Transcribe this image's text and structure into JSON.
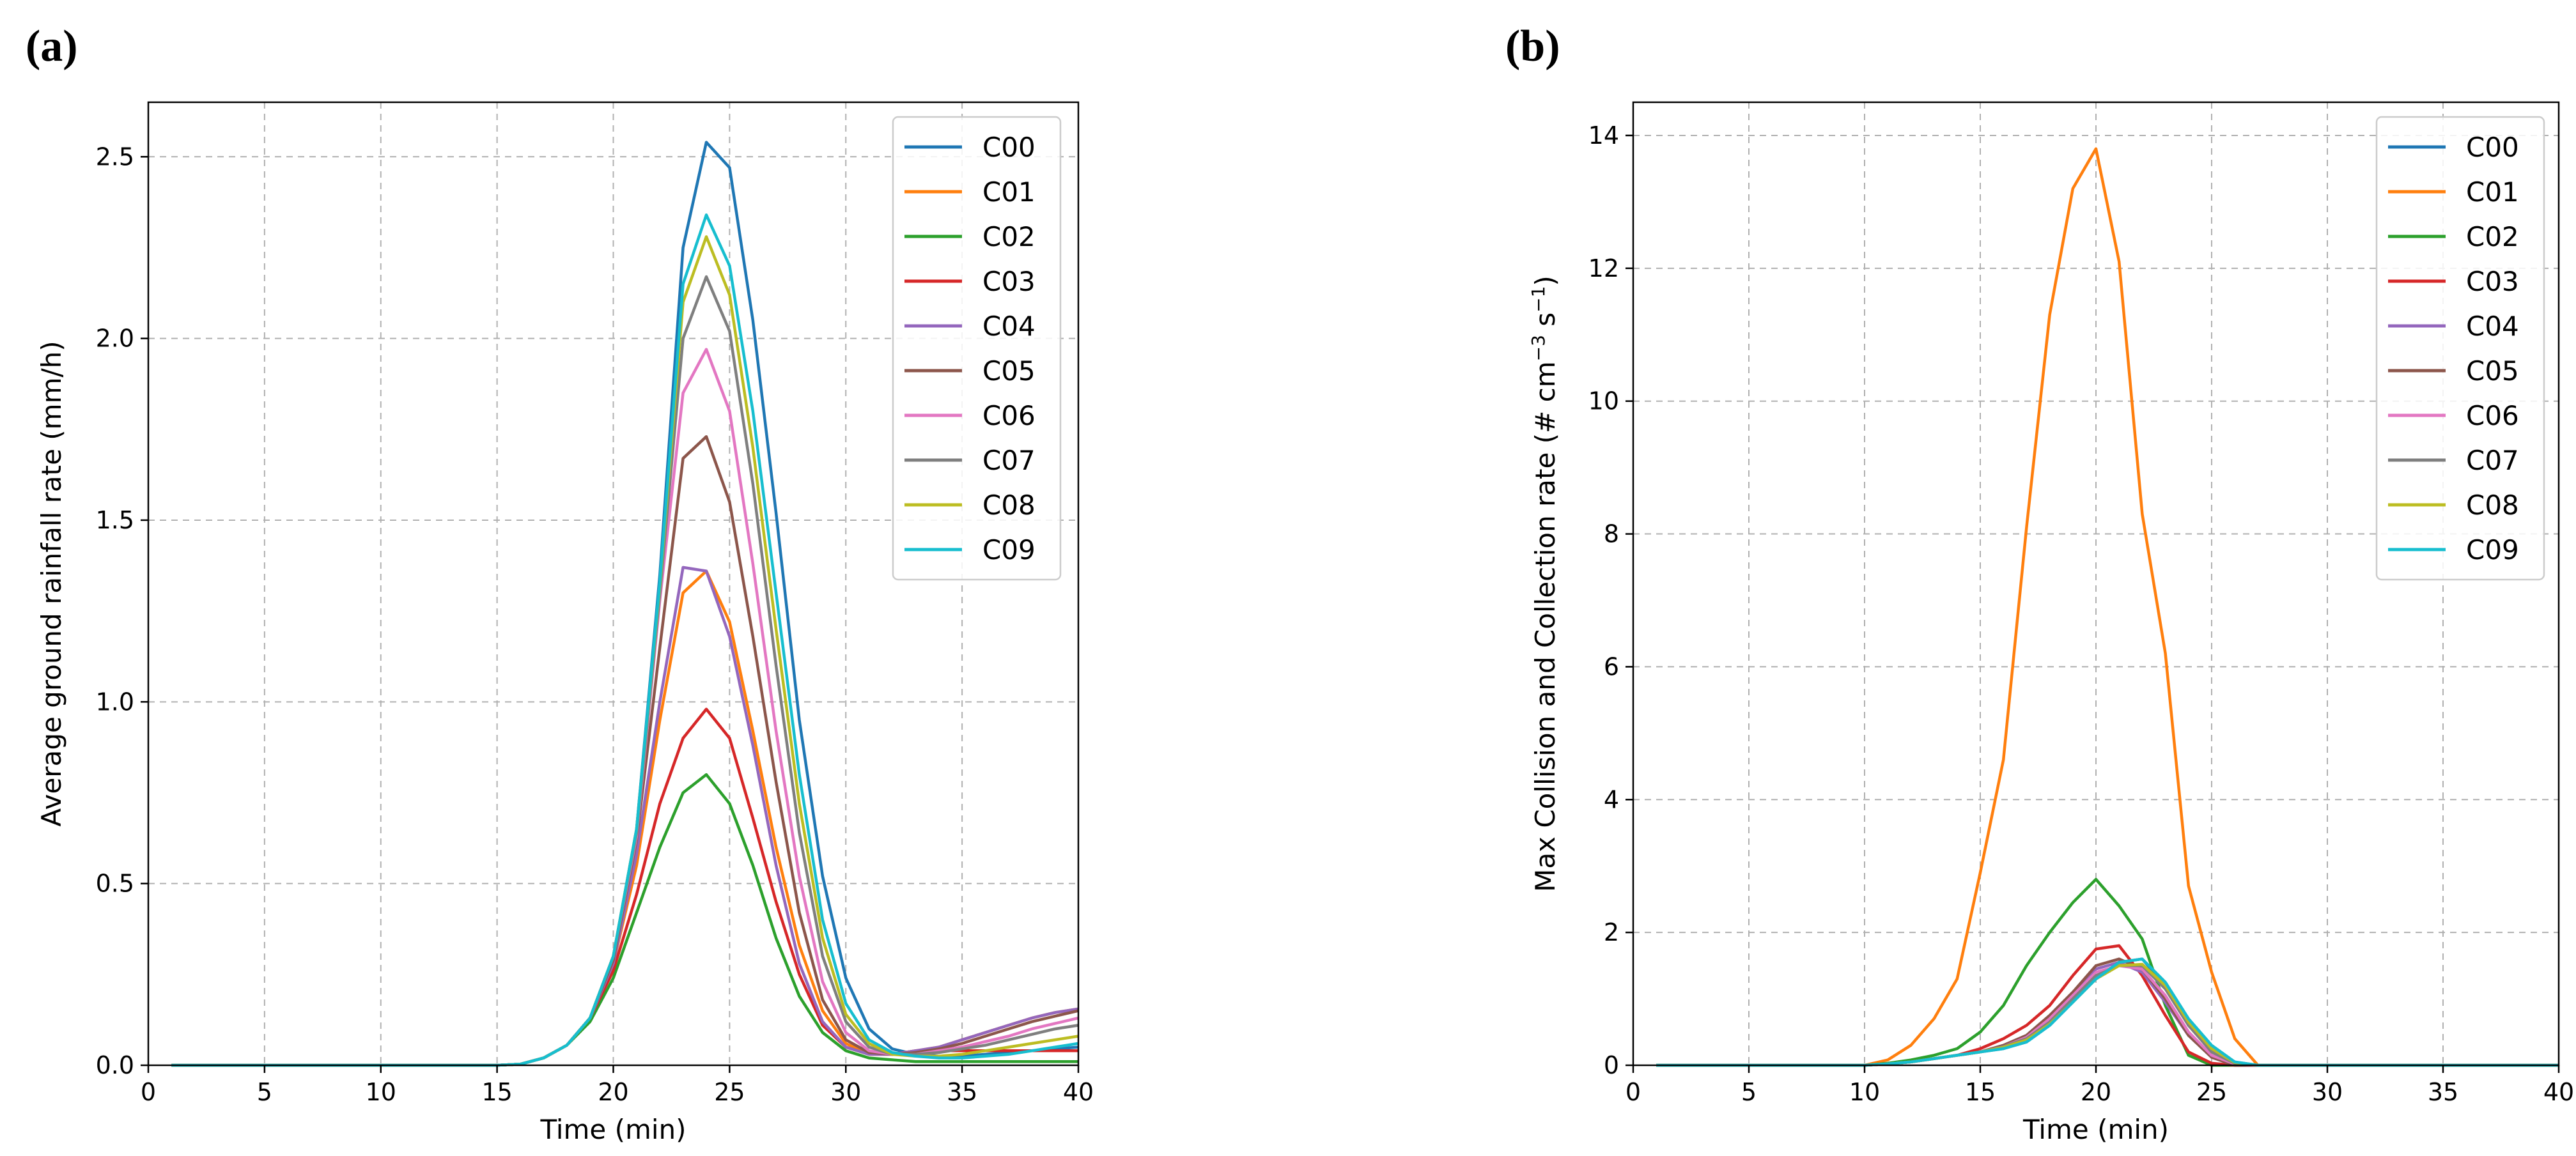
{
  "chart_data": [
    {
      "panel_label": "(a)",
      "type": "line",
      "title": "",
      "xlabel": "Time (min)",
      "ylabel": "Average ground rainfall rate (mm/h)",
      "xlim": [
        0,
        40
      ],
      "ylim": [
        0,
        2.65
      ],
      "xticks": [
        0,
        5,
        10,
        15,
        20,
        25,
        30,
        35,
        40
      ],
      "yticks": [
        0.0,
        0.5,
        1.0,
        1.5,
        2.0,
        2.5
      ],
      "ytick_labels": [
        "0.0",
        "0.5",
        "1.0",
        "1.5",
        "2.0",
        "2.5"
      ],
      "grid": true,
      "legend_position": "top-right",
      "x": [
        1,
        2,
        3,
        4,
        5,
        6,
        7,
        8,
        9,
        10,
        11,
        12,
        13,
        14,
        15,
        16,
        17,
        18,
        19,
        20,
        21,
        22,
        23,
        24,
        25,
        26,
        27,
        28,
        29,
        30,
        31,
        32,
        33,
        34,
        35,
        36,
        37,
        38,
        39,
        40
      ],
      "series": [
        {
          "name": "C00",
          "color": "#1f77b4",
          "values": [
            0,
            0,
            0,
            0,
            0,
            0,
            0,
            0,
            0,
            0,
            0,
            0,
            0,
            0,
            0,
            0.003,
            0.02,
            0.055,
            0.13,
            0.3,
            0.65,
            1.35,
            2.25,
            2.54,
            2.47,
            2.05,
            1.52,
            0.95,
            0.52,
            0.24,
            0.1,
            0.045,
            0.03,
            0.025,
            0.025,
            0.03,
            0.035,
            0.04,
            0.045,
            0.05
          ]
        },
        {
          "name": "C01",
          "color": "#ff7f0e",
          "values": [
            0,
            0,
            0,
            0,
            0,
            0,
            0,
            0,
            0,
            0,
            0,
            0,
            0,
            0,
            0,
            0.003,
            0.02,
            0.055,
            0.13,
            0.28,
            0.55,
            0.95,
            1.3,
            1.36,
            1.22,
            0.92,
            0.6,
            0.33,
            0.15,
            0.06,
            0.03,
            0.03,
            0.04,
            0.05,
            0.07,
            0.09,
            0.11,
            0.13,
            0.145,
            0.155
          ]
        },
        {
          "name": "C02",
          "color": "#2ca02c",
          "values": [
            0,
            0,
            0,
            0,
            0,
            0,
            0,
            0,
            0,
            0,
            0,
            0,
            0,
            0,
            0,
            0.003,
            0.02,
            0.055,
            0.12,
            0.24,
            0.42,
            0.6,
            0.75,
            0.8,
            0.72,
            0.55,
            0.35,
            0.19,
            0.09,
            0.04,
            0.02,
            0.015,
            0.01,
            0.01,
            0.01,
            0.01,
            0.01,
            0.01,
            0.01,
            0.01
          ]
        },
        {
          "name": "C03",
          "color": "#d62728",
          "values": [
            0,
            0,
            0,
            0,
            0,
            0,
            0,
            0,
            0,
            0,
            0,
            0,
            0,
            0,
            0,
            0.003,
            0.02,
            0.055,
            0.13,
            0.26,
            0.47,
            0.72,
            0.9,
            0.98,
            0.9,
            0.68,
            0.45,
            0.25,
            0.11,
            0.05,
            0.03,
            0.03,
            0.04,
            0.04,
            0.04,
            0.04,
            0.04,
            0.04,
            0.04,
            0.04
          ]
        },
        {
          "name": "C04",
          "color": "#9467bd",
          "values": [
            0,
            0,
            0,
            0,
            0,
            0,
            0,
            0,
            0,
            0,
            0,
            0,
            0,
            0,
            0,
            0.003,
            0.02,
            0.055,
            0.13,
            0.28,
            0.58,
            1.0,
            1.37,
            1.36,
            1.18,
            0.88,
            0.55,
            0.28,
            0.12,
            0.05,
            0.03,
            0.03,
            0.04,
            0.05,
            0.07,
            0.09,
            0.11,
            0.13,
            0.145,
            0.155
          ]
        },
        {
          "name": "C05",
          "color": "#8c564b",
          "values": [
            0,
            0,
            0,
            0,
            0,
            0,
            0,
            0,
            0,
            0,
            0,
            0,
            0,
            0,
            0,
            0.003,
            0.02,
            0.055,
            0.13,
            0.29,
            0.62,
            1.15,
            1.67,
            1.73,
            1.55,
            1.18,
            0.78,
            0.42,
            0.18,
            0.07,
            0.035,
            0.03,
            0.035,
            0.045,
            0.06,
            0.08,
            0.1,
            0.12,
            0.135,
            0.15
          ]
        },
        {
          "name": "C06",
          "color": "#e377c2",
          "values": [
            0,
            0,
            0,
            0,
            0,
            0,
            0,
            0,
            0,
            0,
            0,
            0,
            0,
            0,
            0,
            0.003,
            0.02,
            0.055,
            0.13,
            0.3,
            0.63,
            1.28,
            1.85,
            1.97,
            1.8,
            1.38,
            0.92,
            0.52,
            0.23,
            0.09,
            0.04,
            0.03,
            0.03,
            0.04,
            0.05,
            0.065,
            0.08,
            0.1,
            0.115,
            0.13
          ]
        },
        {
          "name": "C07",
          "color": "#7f7f7f",
          "values": [
            0,
            0,
            0,
            0,
            0,
            0,
            0,
            0,
            0,
            0,
            0,
            0,
            0,
            0,
            0,
            0.003,
            0.02,
            0.055,
            0.13,
            0.3,
            0.64,
            1.3,
            2.0,
            2.17,
            2.02,
            1.6,
            1.1,
            0.64,
            0.3,
            0.12,
            0.05,
            0.03,
            0.03,
            0.035,
            0.045,
            0.055,
            0.07,
            0.085,
            0.1,
            0.11
          ]
        },
        {
          "name": "C08",
          "color": "#bcbd22",
          "values": [
            0,
            0,
            0,
            0,
            0,
            0,
            0,
            0,
            0,
            0,
            0,
            0,
            0,
            0,
            0,
            0.003,
            0.02,
            0.055,
            0.13,
            0.3,
            0.65,
            1.32,
            2.1,
            2.28,
            2.12,
            1.7,
            1.2,
            0.72,
            0.35,
            0.14,
            0.06,
            0.03,
            0.025,
            0.025,
            0.03,
            0.04,
            0.05,
            0.06,
            0.07,
            0.08
          ]
        },
        {
          "name": "C09",
          "color": "#17becf",
          "values": [
            0,
            0,
            0,
            0,
            0,
            0,
            0,
            0,
            0,
            0,
            0,
            0,
            0,
            0,
            0,
            0.003,
            0.02,
            0.055,
            0.13,
            0.3,
            0.65,
            1.33,
            2.15,
            2.34,
            2.2,
            1.8,
            1.3,
            0.8,
            0.4,
            0.17,
            0.07,
            0.035,
            0.025,
            0.02,
            0.02,
            0.025,
            0.03,
            0.04,
            0.05,
            0.06
          ]
        }
      ]
    },
    {
      "panel_label": "(b)",
      "type": "line",
      "title": "",
      "xlabel": "Time (min)",
      "ylabel": "Max Collision and Collection rate (# cm",
      "ylabel_sup1": "−3",
      "ylabel_mid": " s",
      "ylabel_sup2": "−1",
      "ylabel_end": ")",
      "xlim": [
        0,
        40
      ],
      "ylim": [
        0,
        14.5
      ],
      "xticks": [
        0,
        5,
        10,
        15,
        20,
        25,
        30,
        35,
        40
      ],
      "yticks": [
        0,
        2,
        4,
        6,
        8,
        10,
        12,
        14
      ],
      "ytick_labels": [
        "0",
        "2",
        "4",
        "6",
        "8",
        "10",
        "12",
        "14"
      ],
      "grid": true,
      "legend_position": "top-right",
      "x": [
        1,
        2,
        3,
        4,
        5,
        6,
        7,
        8,
        9,
        10,
        11,
        12,
        13,
        14,
        15,
        16,
        17,
        18,
        19,
        20,
        21,
        22,
        23,
        24,
        25,
        26,
        27,
        28,
        29,
        30,
        31,
        32,
        33,
        34,
        35,
        36,
        37,
        38,
        39,
        40
      ],
      "series": [
        {
          "name": "C00",
          "color": "#1f77b4",
          "values": [
            0,
            0,
            0,
            0,
            0,
            0,
            0,
            0,
            0,
            0,
            0.02,
            0.05,
            0.1,
            0.15,
            0.2,
            0.25,
            0.35,
            0.6,
            0.95,
            1.3,
            1.55,
            1.6,
            1.2,
            0.6,
            0.25,
            0.05,
            0,
            0,
            0,
            0,
            0,
            0,
            0,
            0,
            0,
            0,
            0,
            0,
            0,
            0
          ]
        },
        {
          "name": "C01",
          "color": "#ff7f0e",
          "values": [
            0,
            0,
            0,
            0,
            0,
            0,
            0,
            0,
            0,
            0,
            0.08,
            0.3,
            0.7,
            1.3,
            2.9,
            4.6,
            8.1,
            11.3,
            13.2,
            13.8,
            12.1,
            8.3,
            6.2,
            2.7,
            1.4,
            0.4,
            0,
            0,
            0,
            0,
            0,
            0,
            0,
            0,
            0,
            0,
            0,
            0,
            0,
            0
          ]
        },
        {
          "name": "C02",
          "color": "#2ca02c",
          "values": [
            0,
            0,
            0,
            0,
            0,
            0,
            0,
            0,
            0,
            0,
            0.03,
            0.08,
            0.15,
            0.25,
            0.5,
            0.9,
            1.5,
            2.0,
            2.45,
            2.8,
            2.4,
            1.9,
            0.9,
            0.15,
            0,
            0,
            0,
            0,
            0,
            0,
            0,
            0,
            0,
            0,
            0,
            0,
            0,
            0,
            0,
            0
          ]
        },
        {
          "name": "C03",
          "color": "#d62728",
          "values": [
            0,
            0,
            0,
            0,
            0,
            0,
            0,
            0,
            0,
            0,
            0.02,
            0.05,
            0.1,
            0.15,
            0.25,
            0.4,
            0.6,
            0.9,
            1.35,
            1.75,
            1.8,
            1.35,
            0.75,
            0.2,
            0.03,
            0,
            0,
            0,
            0,
            0,
            0,
            0,
            0,
            0,
            0,
            0,
            0,
            0,
            0,
            0
          ]
        },
        {
          "name": "C04",
          "color": "#9467bd",
          "values": [
            0,
            0,
            0,
            0,
            0,
            0,
            0,
            0,
            0,
            0,
            0.02,
            0.05,
            0.1,
            0.15,
            0.2,
            0.3,
            0.45,
            0.75,
            1.1,
            1.45,
            1.55,
            1.4,
            0.95,
            0.45,
            0.12,
            0,
            0,
            0,
            0,
            0,
            0,
            0,
            0,
            0,
            0,
            0,
            0,
            0,
            0,
            0
          ]
        },
        {
          "name": "C05",
          "color": "#8c564b",
          "values": [
            0,
            0,
            0,
            0,
            0,
            0,
            0,
            0,
            0,
            0,
            0.02,
            0.05,
            0.1,
            0.15,
            0.2,
            0.3,
            0.45,
            0.75,
            1.1,
            1.5,
            1.6,
            1.45,
            1.0,
            0.45,
            0.12,
            0,
            0,
            0,
            0,
            0,
            0,
            0,
            0,
            0,
            0,
            0,
            0,
            0,
            0,
            0
          ]
        },
        {
          "name": "C06",
          "color": "#e377c2",
          "values": [
            0,
            0,
            0,
            0,
            0,
            0,
            0,
            0,
            0,
            0,
            0.02,
            0.05,
            0.1,
            0.15,
            0.2,
            0.28,
            0.42,
            0.7,
            1.05,
            1.4,
            1.5,
            1.45,
            1.05,
            0.5,
            0.15,
            0.02,
            0,
            0,
            0,
            0,
            0,
            0,
            0,
            0,
            0,
            0,
            0,
            0,
            0,
            0
          ]
        },
        {
          "name": "C07",
          "color": "#7f7f7f",
          "values": [
            0,
            0,
            0,
            0,
            0,
            0,
            0,
            0,
            0,
            0,
            0.02,
            0.05,
            0.1,
            0.15,
            0.2,
            0.28,
            0.4,
            0.65,
            1.0,
            1.35,
            1.5,
            1.5,
            1.15,
            0.6,
            0.2,
            0.03,
            0,
            0,
            0,
            0,
            0,
            0,
            0,
            0,
            0,
            0,
            0,
            0,
            0,
            0
          ]
        },
        {
          "name": "C08",
          "color": "#bcbd22",
          "values": [
            0,
            0,
            0,
            0,
            0,
            0,
            0,
            0,
            0,
            0,
            0.02,
            0.05,
            0.1,
            0.15,
            0.2,
            0.27,
            0.38,
            0.62,
            0.95,
            1.3,
            1.5,
            1.52,
            1.2,
            0.65,
            0.25,
            0.04,
            0,
            0,
            0,
            0,
            0,
            0,
            0,
            0,
            0,
            0,
            0,
            0,
            0,
            0
          ]
        },
        {
          "name": "C09",
          "color": "#17becf",
          "values": [
            0,
            0,
            0,
            0,
            0,
            0,
            0,
            0,
            0,
            0,
            0.02,
            0.05,
            0.1,
            0.15,
            0.2,
            0.25,
            0.35,
            0.6,
            0.95,
            1.3,
            1.55,
            1.6,
            1.25,
            0.7,
            0.3,
            0.05,
            0,
            0,
            0,
            0,
            0,
            0,
            0,
            0,
            0,
            0,
            0,
            0,
            0,
            0
          ]
        }
      ]
    }
  ]
}
